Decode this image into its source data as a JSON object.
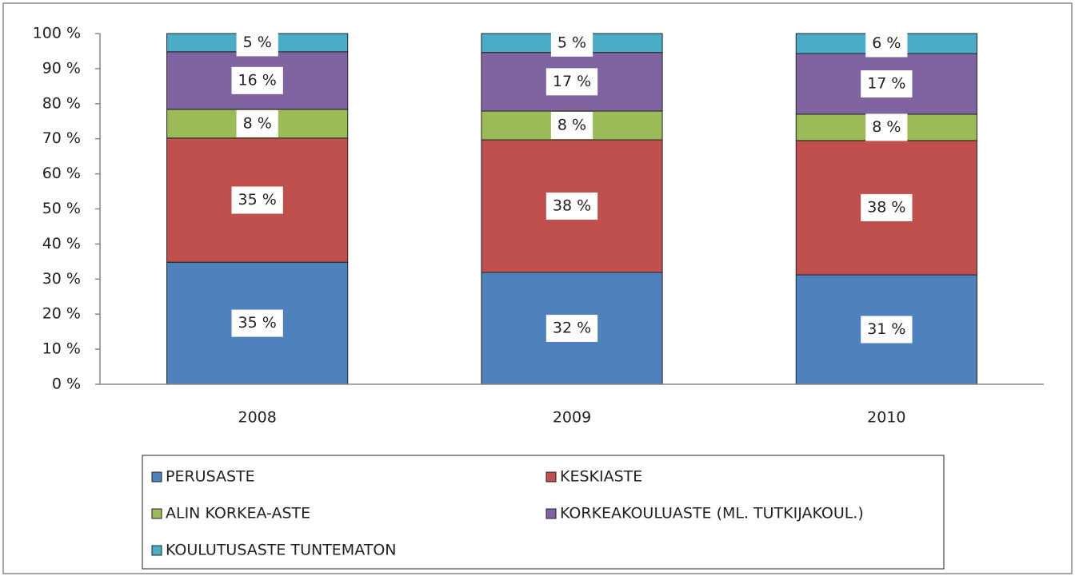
{
  "chart_data": {
    "type": "stacked_bar",
    "categories": [
      "2008",
      "2009",
      "2010"
    ],
    "series": [
      {
        "name": "PERUSASTE",
        "color": "#4f81bd",
        "values": [
          34.8,
          31.9,
          31.2
        ],
        "value_labels": [
          "35 %",
          "32 %",
          "31 %"
        ]
      },
      {
        "name": "KESKIASTE",
        "color": "#c0504d",
        "values": [
          35.4,
          37.8,
          38.3
        ],
        "value_labels": [
          "35 %",
          "38 %",
          "38 %"
        ]
      },
      {
        "name": "ALIN KORKEA-ASTE",
        "color": "#9bbb59",
        "values": [
          8.2,
          8.2,
          7.5
        ],
        "value_labels": [
          "8 %",
          "8 %",
          "8 %"
        ]
      },
      {
        "name": "KORKEAKOULUASTE (ML. TUTKIJAKOUL.)",
        "color": "#8064a2",
        "values": [
          16.4,
          16.7,
          17.3
        ],
        "value_labels": [
          "16 %",
          "17 %",
          "17 %"
        ]
      },
      {
        "name": "KOULUTUSASTE TUNTEMATON",
        "color": "#4bacc6",
        "values": [
          5.2,
          5.4,
          5.7
        ],
        "value_labels": [
          "5 %",
          "5 %",
          "6 %"
        ]
      }
    ],
    "ylim": [
      0,
      100
    ],
    "yticks": [
      {
        "value": 0,
        "label": "0 %"
      },
      {
        "value": 10,
        "label": "10 %"
      },
      {
        "value": 20,
        "label": "20 %"
      },
      {
        "value": 30,
        "label": "30 %"
      },
      {
        "value": 40,
        "label": "40 %"
      },
      {
        "value": 50,
        "label": "50 %"
      },
      {
        "value": 60,
        "label": "60 %"
      },
      {
        "value": 70,
        "label": "70 %"
      },
      {
        "value": 80,
        "label": "80 %"
      },
      {
        "value": 90,
        "label": "90 %"
      },
      {
        "value": 100,
        "label": "100 %"
      }
    ],
    "legend": "bottom"
  }
}
